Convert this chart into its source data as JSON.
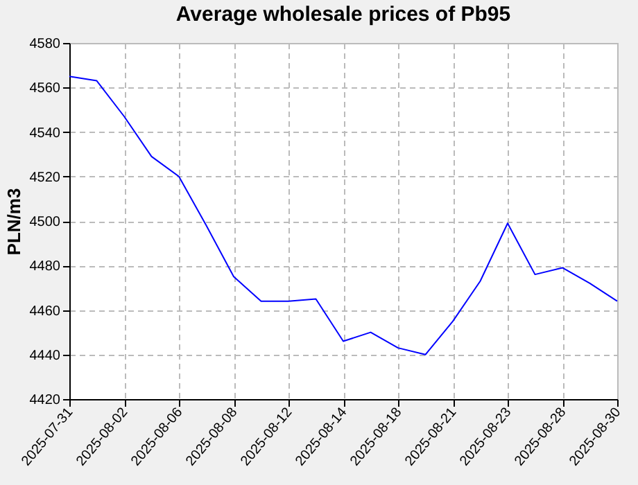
{
  "chart_data": {
    "type": "line",
    "title": "Average wholesale prices of Pb95",
    "ylabel": "PLN/m3",
    "categories": [
      "2025-07-31",
      null,
      "2025-08-02",
      null,
      "2025-08-06",
      null,
      "2025-08-08",
      null,
      "2025-08-12",
      null,
      "2025-08-14",
      null,
      "2025-08-18",
      null,
      "2025-08-21",
      null,
      "2025-08-23",
      null,
      "2025-08-28",
      null,
      "2025-08-30"
    ],
    "series": [
      {
        "color": "#0000ff",
        "values": [
          4565,
          4563,
          4547,
          4529,
          4520,
          4498,
          4475,
          4464,
          4464,
          4465,
          4446,
          4450,
          4443,
          4440,
          4455,
          4473,
          4499,
          4476,
          4479,
          4472,
          4464
        ]
      }
    ],
    "ylim": [
      4420,
      4580
    ],
    "yticks": [
      4420,
      4440,
      4460,
      4480,
      4500,
      4520,
      4540,
      4560,
      4580
    ],
    "grid": true
  }
}
